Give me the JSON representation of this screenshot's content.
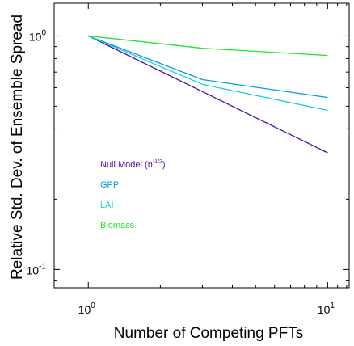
{
  "chart_data": {
    "type": "line",
    "xlabel": "Number of Competing PFTs",
    "ylabel": "Relative Std. Dev. of Ensemble Spread",
    "xscale": "log",
    "yscale": "log",
    "xlim": [
      0.72,
      12.3
    ],
    "ylim": [
      0.0835,
      1.38
    ],
    "grid": false,
    "legend_placement": "center-left",
    "x_ticks": [
      {
        "value": 1,
        "base": "10",
        "exp": "0"
      },
      {
        "value": 10,
        "base": "10",
        "exp": "1"
      }
    ],
    "y_ticks": [
      {
        "value": 1,
        "base": "10",
        "exp": "0"
      },
      {
        "value": 0.1,
        "base": "10",
        "exp": "-1"
      }
    ],
    "series": [
      {
        "name": "Null Model",
        "legend_suffix": "-1/2",
        "color": "#4b0ba8",
        "x": [
          1,
          10
        ],
        "y": [
          1.0,
          0.316
        ]
      },
      {
        "name": "GPP",
        "color": "#0a96e6",
        "x": [
          1,
          3,
          10
        ],
        "y": [
          1.0,
          0.65,
          0.545
        ]
      },
      {
        "name": "LAI",
        "color": "#14d2d2",
        "x": [
          1,
          3,
          10
        ],
        "y": [
          1.0,
          0.62,
          0.48
        ]
      },
      {
        "name": "Biomass",
        "color": "#1ee632",
        "x": [
          1,
          3,
          10
        ],
        "y": [
          1.0,
          0.885,
          0.825
        ]
      }
    ]
  }
}
